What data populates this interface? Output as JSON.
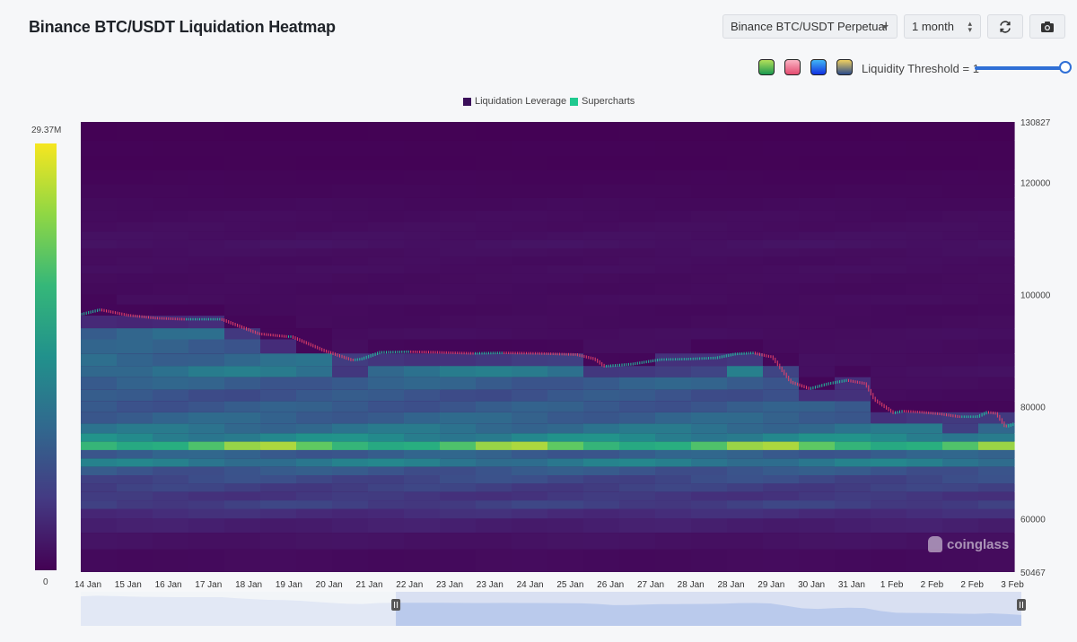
{
  "header": {
    "title": "Binance BTC/USDT Liquidation Heatmap",
    "pair_select": "Binance BTC/USDT Perpetual",
    "range_select": "1 month",
    "refresh_icon": "refresh-icon",
    "screenshot_icon": "camera-icon"
  },
  "controls": {
    "threshold_label": "Liquidity Threshold = 1",
    "threshold_value": 1,
    "palettes": [
      {
        "name": "viridis",
        "colors": [
          "#1a9850",
          "#b3e05a"
        ]
      },
      {
        "name": "magma",
        "colors": [
          "#e34a6f",
          "#fbb4c4"
        ]
      },
      {
        "name": "blue",
        "colors": [
          "#1030e0",
          "#41b6f6"
        ]
      },
      {
        "name": "cividis",
        "colors": [
          "#2a4a8a",
          "#f0d060"
        ]
      }
    ]
  },
  "legend": [
    {
      "label": "Liquidation Leverage",
      "color": "#3b0f5a"
    },
    {
      "label": "Supercharts",
      "color": "#1fc98f"
    }
  ],
  "colorbar": {
    "max_label": "29.37M",
    "min_label": "0"
  },
  "watermark": "coinglass",
  "chart_data": {
    "type": "heatmap",
    "title": "Binance BTC/USDT Liquidation Heatmap",
    "y_axis": {
      "min": 50467,
      "max": 130827,
      "tick_labels": [
        "130827",
        "120000",
        "100000",
        "80000",
        "60000",
        "50467"
      ],
      "tick_values": [
        130827,
        120000,
        100000,
        80000,
        60000,
        50467
      ]
    },
    "x_axis": {
      "tick_labels": [
        "14 Jan",
        "15 Jan",
        "16 Jan",
        "17 Jan",
        "18 Jan",
        "19 Jan",
        "20 Jan",
        "21 Jan",
        "22 Jan",
        "23 Jan",
        "23 Jan",
        "24 Jan",
        "25 Jan",
        "26 Jan",
        "27 Jan",
        "28 Jan",
        "28 Jan",
        "29 Jan",
        "30 Jan",
        "31 Jan",
        "1 Feb",
        "2 Feb",
        "2 Feb",
        "3 Feb"
      ]
    },
    "colorscale": {
      "min": 0,
      "max": 29370000,
      "min_label": "0",
      "max_label": "29.37M"
    },
    "price_series": {
      "name": "Supercharts",
      "time_fraction": [
        0.0,
        0.02,
        0.05,
        0.08,
        0.11,
        0.15,
        0.19,
        0.22,
        0.225,
        0.26,
        0.29,
        0.3,
        0.32,
        0.35,
        0.38,
        0.42,
        0.45,
        0.49,
        0.53,
        0.55,
        0.56,
        0.59,
        0.62,
        0.65,
        0.68,
        0.7,
        0.72,
        0.735,
        0.74,
        0.76,
        0.78,
        0.8,
        0.82,
        0.84,
        0.85,
        0.87,
        0.88,
        0.9,
        0.92,
        0.94,
        0.96,
        0.97,
        0.98,
        0.99,
        1.0
      ],
      "price": [
        96500,
        97300,
        96300,
        95800,
        95600,
        95600,
        93000,
        92500,
        92500,
        90000,
        88300,
        88500,
        89700,
        89800,
        89700,
        89500,
        89600,
        89500,
        89300,
        88500,
        87200,
        87600,
        88400,
        88500,
        88700,
        89400,
        89600,
        89000,
        88900,
        84400,
        83200,
        84100,
        84700,
        84100,
        81200,
        78900,
        79200,
        79000,
        78700,
        78200,
        78200,
        79000,
        78800,
        76400,
        77000
      ]
    },
    "liquidity_bands": [
      {
        "price": 129000,
        "intensity": 0.05
      },
      {
        "price": 126000,
        "intensity": 0.1
      },
      {
        "price": 123500,
        "intensity": 0.08
      },
      {
        "price": 121000,
        "intensity": 0.16
      },
      {
        "price": 118500,
        "intensity": 0.22
      },
      {
        "price": 116000,
        "intensity": 0.3
      },
      {
        "price": 114000,
        "intensity": 0.38
      },
      {
        "price": 112000,
        "intensity": 0.42
      },
      {
        "price": 110500,
        "intensity": 0.5
      },
      {
        "price": 109000,
        "intensity": 0.58
      },
      {
        "price": 107500,
        "intensity": 0.46
      },
      {
        "price": 106000,
        "intensity": 0.4
      },
      {
        "price": 104500,
        "intensity": 0.44
      },
      {
        "price": 103000,
        "intensity": 0.38
      },
      {
        "price": 101000,
        "intensity": 0.34
      },
      {
        "price": 99000,
        "intensity": 0.4
      },
      {
        "price": 97500,
        "intensity": 0.32
      },
      {
        "price": 95000,
        "intensity": 0.36
      },
      {
        "price": 93000,
        "intensity": 0.44
      },
      {
        "price": 91000,
        "intensity": 0.4
      },
      {
        "price": 88000,
        "intensity": 0.46
      },
      {
        "price": 86500,
        "intensity": 0.52
      },
      {
        "price": 84000,
        "intensity": 0.4
      },
      {
        "price": 82000,
        "intensity": 0.35
      },
      {
        "price": 80000,
        "intensity": 0.38
      },
      {
        "price": 78000,
        "intensity": 0.42
      },
      {
        "price": 76000,
        "intensity": 0.5
      },
      {
        "price": 74500,
        "intensity": 0.62
      },
      {
        "price": 73000,
        "intensity": 0.95
      },
      {
        "price": 71500,
        "intensity": 0.4
      },
      {
        "price": 70000,
        "intensity": 0.55
      },
      {
        "price": 68500,
        "intensity": 0.36
      },
      {
        "price": 67000,
        "intensity": 0.3
      },
      {
        "price": 65500,
        "intensity": 0.26
      },
      {
        "price": 64000,
        "intensity": 0.22
      },
      {
        "price": 62500,
        "intensity": 0.26
      },
      {
        "price": 61000,
        "intensity": 0.18
      },
      {
        "price": 59000,
        "intensity": 0.12
      },
      {
        "price": 56000,
        "intensity": 0.07
      },
      {
        "price": 53000,
        "intensity": 0.04
      }
    ],
    "range_selector": {
      "start_fraction": 0.335,
      "end_fraction": 1.0
    }
  }
}
